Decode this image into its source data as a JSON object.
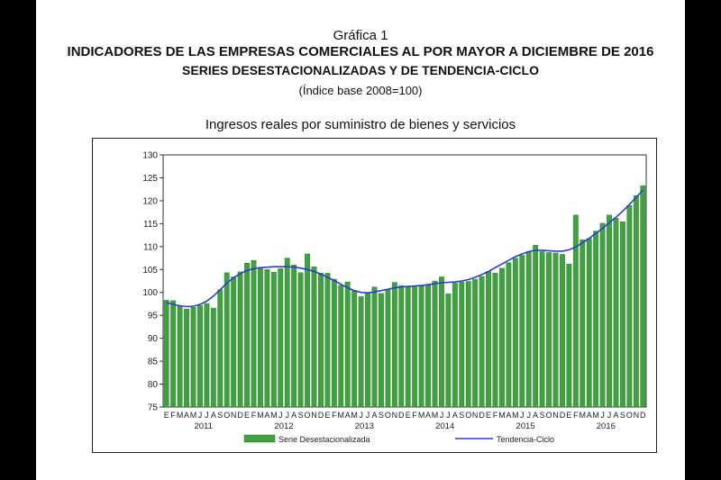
{
  "header": {
    "label": "Gráfica 1",
    "title": "INDICADORES DE LAS EMPRESAS COMERCIALES AL POR MAYOR A DICIEMBRE DE 2016",
    "subtitle": "SERIES DESESTACIONALIZADAS Y DE TENDENCIA-CICLO",
    "base": "(Índice base 2008=100)"
  },
  "chart_data": {
    "type": "bar",
    "title": "Ingresos reales por suministro de bienes y servicios",
    "ylim": [
      75,
      130
    ],
    "yticks": [
      75,
      80,
      85,
      90,
      95,
      100,
      105,
      110,
      115,
      120,
      125,
      130
    ],
    "grid": false,
    "legend_position": "bottom",
    "month_labels": [
      "E",
      "F",
      "M",
      "A",
      "M",
      "J",
      "J",
      "A",
      "S",
      "O",
      "N",
      "D"
    ],
    "years": [
      "2011",
      "2012",
      "2013",
      "2014",
      "2015",
      "2016"
    ],
    "series": [
      {
        "name": "Serie Desestacionalizada",
        "type": "bar",
        "color": "#3fa13f",
        "values": [
          98.3,
          98.2,
          97.0,
          96.4,
          96.8,
          97.2,
          97.6,
          96.6,
          100.6,
          104.3,
          103.4,
          104.5,
          106.4,
          107.0,
          105.2,
          105.0,
          104.4,
          105.2,
          107.5,
          106.0,
          104.3,
          108.4,
          105.6,
          104.2,
          104.2,
          102.9,
          101.6,
          102.3,
          100.4,
          99.1,
          99.8,
          101.2,
          99.8,
          100.6,
          102.2,
          101.5,
          101.3,
          101.3,
          101.6,
          101.6,
          102.5,
          103.4,
          99.7,
          102.1,
          102.3,
          102.4,
          102.9,
          103.5,
          104.6,
          104.2,
          105.3,
          106.5,
          107.5,
          108.1,
          108.9,
          110.3,
          108.9,
          108.7,
          108.6,
          108.3,
          106.2,
          116.9,
          111.5,
          111.8,
          113.4,
          115.1,
          116.9,
          116.2,
          115.4,
          119.0,
          121.1,
          123.3
        ]
      },
      {
        "name": "Tendencia-Ciclo",
        "type": "line",
        "color": "#2b3bd6",
        "values": [
          97.8,
          97.4,
          97.1,
          96.9,
          97.0,
          97.4,
          98.1,
          99.2,
          100.6,
          102.0,
          103.2,
          104.1,
          104.8,
          105.2,
          105.4,
          105.5,
          105.6,
          105.6,
          105.6,
          105.5,
          105.3,
          105.0,
          104.6,
          104.0,
          103.3,
          102.6,
          101.8,
          101.0,
          100.4,
          100.0,
          99.9,
          100.1,
          100.4,
          100.7,
          101.0,
          101.2,
          101.3,
          101.4,
          101.5,
          101.7,
          101.9,
          102.1,
          102.2,
          102.3,
          102.5,
          102.8,
          103.3,
          103.9,
          104.6,
          105.4,
          106.2,
          107.0,
          107.8,
          108.4,
          108.9,
          109.2,
          109.2,
          109.1,
          109.0,
          109.0,
          109.3,
          109.9,
          110.8,
          111.8,
          112.9,
          114.0,
          115.2,
          116.4,
          117.7,
          119.2,
          120.7,
          122.3
        ]
      }
    ]
  }
}
